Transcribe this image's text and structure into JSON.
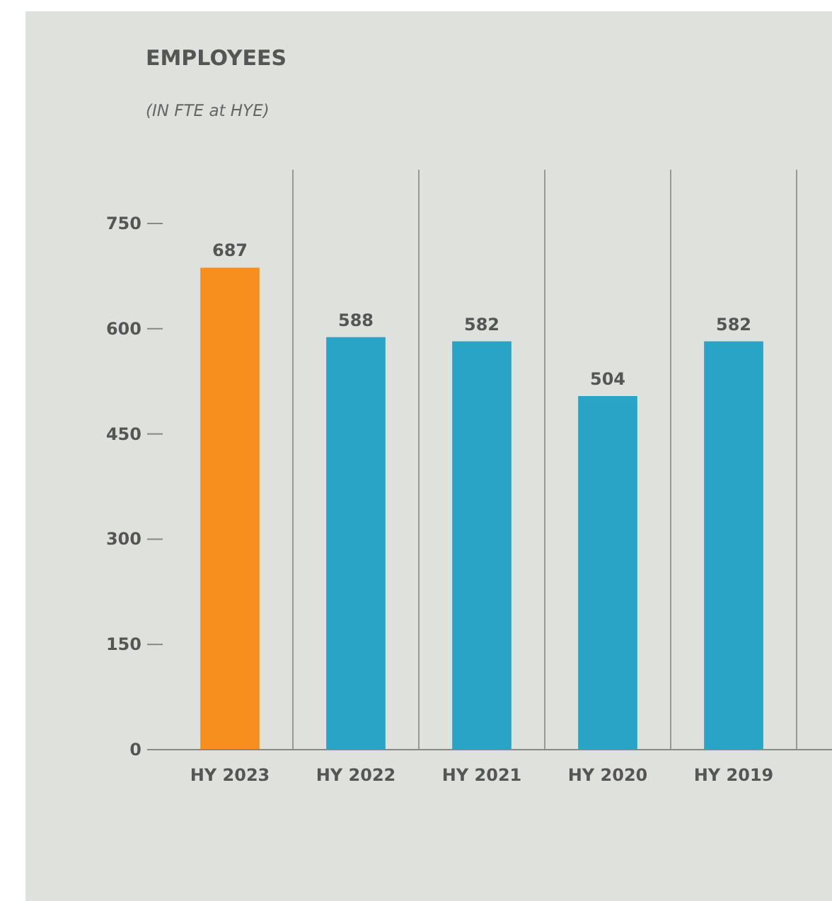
{
  "chart_data": {
    "type": "bar",
    "title": "EMPLOYEES",
    "subtitle": "(IN FTE at HYE)",
    "categories": [
      "HY 2023",
      "HY 2022",
      "HY 2021",
      "HY 2020",
      "HY 2019"
    ],
    "values": [
      687,
      588,
      582,
      504,
      582
    ],
    "colors": [
      "#f78f1e",
      "#29a3c6",
      "#29a3c6",
      "#29a3c6",
      "#29a3c6"
    ],
    "ylim": [
      0,
      750
    ],
    "yticks": [
      0,
      150,
      300,
      450,
      600,
      750
    ],
    "grid": "x",
    "data_labels": true
  }
}
